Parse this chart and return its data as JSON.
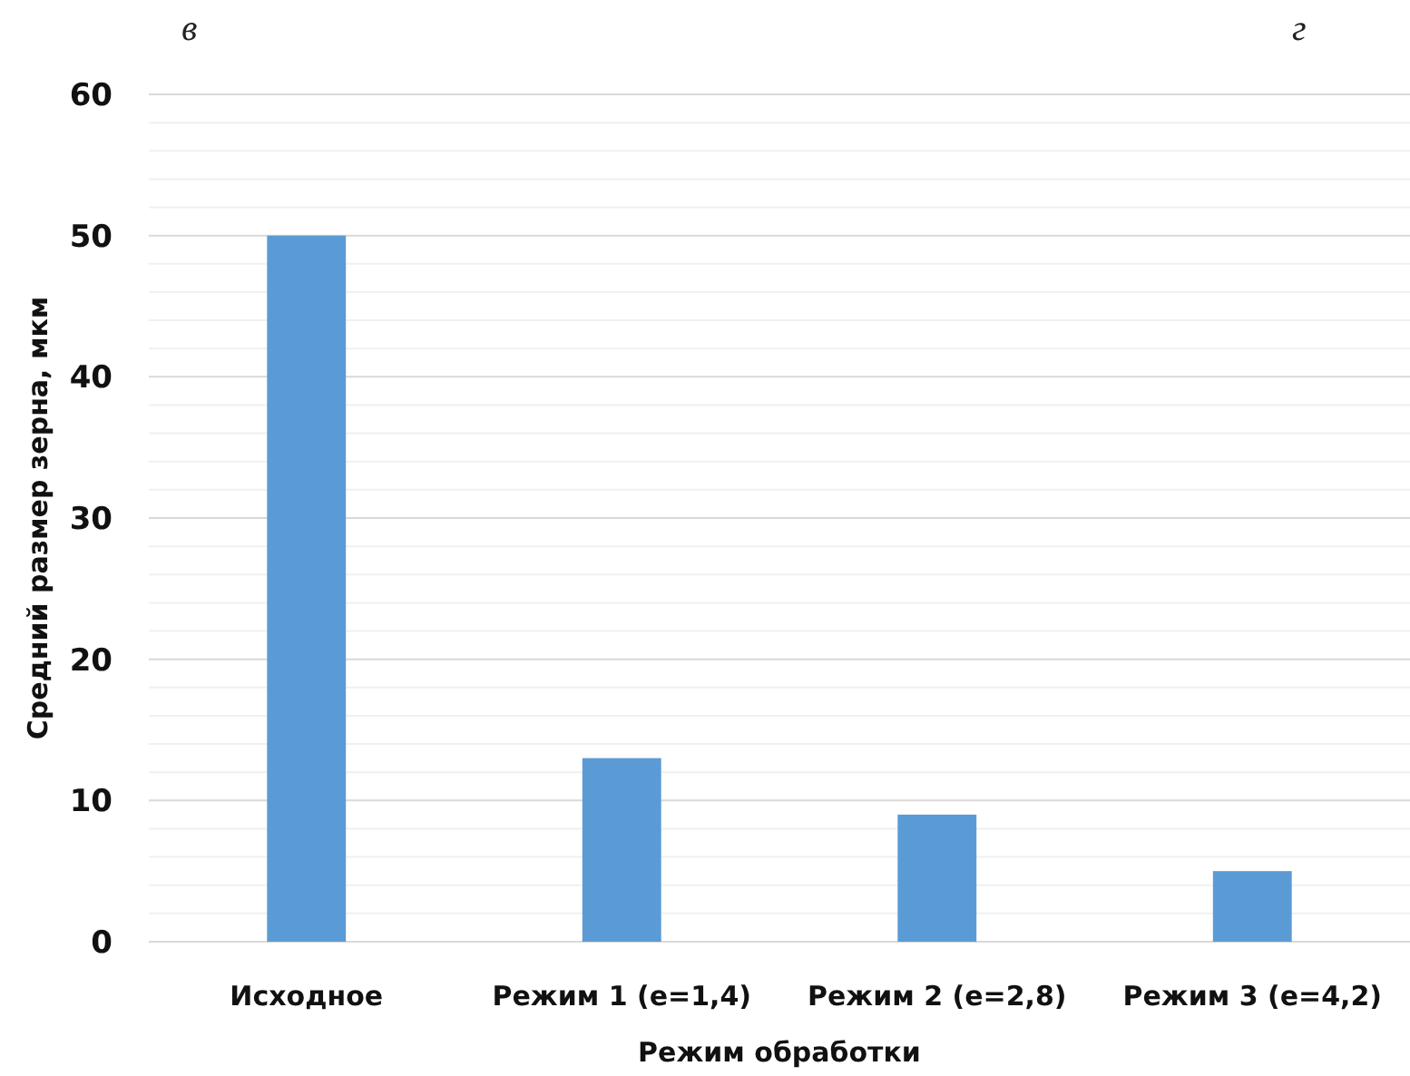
{
  "chart_data": {
    "type": "bar",
    "xlabel": "Режим обработки",
    "ylabel": "Средний размер зерна, мкм",
    "annotations": [
      "в",
      "г"
    ],
    "categories": [
      "Исходное",
      "Режим 1 (e=1,4)",
      "Режим 2 (e=2,8)",
      "Режим 3 (e=4,2)"
    ],
    "values": [
      50,
      13,
      9,
      5
    ],
    "color": "#5b9bd5",
    "ylim": [
      0,
      60
    ],
    "yticks": [
      0,
      {
        "value": 2,
        "label": null
      },
      {
        "value": 4,
        "label": null
      },
      {
        "value": 6,
        "label": null
      },
      {
        "value": 8,
        "label": null
      },
      10,
      {
        "value": 12,
        "label": null
      },
      {
        "value": 14,
        "label": null
      },
      {
        "value": 16,
        "label": null
      },
      {
        "value": 18,
        "label": null
      },
      20,
      {
        "value": 22,
        "label": null
      },
      {
        "value": 24,
        "label": null
      },
      {
        "value": 26,
        "label": null
      },
      {
        "value": 28,
        "label": null
      },
      30,
      {
        "value": 32,
        "label": null
      },
      {
        "value": 34,
        "label": null
      },
      {
        "value": 36,
        "label": null
      },
      {
        "value": 38,
        "label": null
      },
      40,
      {
        "value": 42,
        "label": null
      },
      {
        "value": 44,
        "label": null
      },
      {
        "value": 46,
        "label": null
      },
      {
        "value": 48,
        "label": null
      },
      50,
      {
        "value": 52,
        "label": null
      },
      {
        "value": 54,
        "label": null
      },
      {
        "value": 56,
        "label": null
      },
      {
        "value": 58,
        "label": null
      },
      60
    ],
    "grid": true
  }
}
